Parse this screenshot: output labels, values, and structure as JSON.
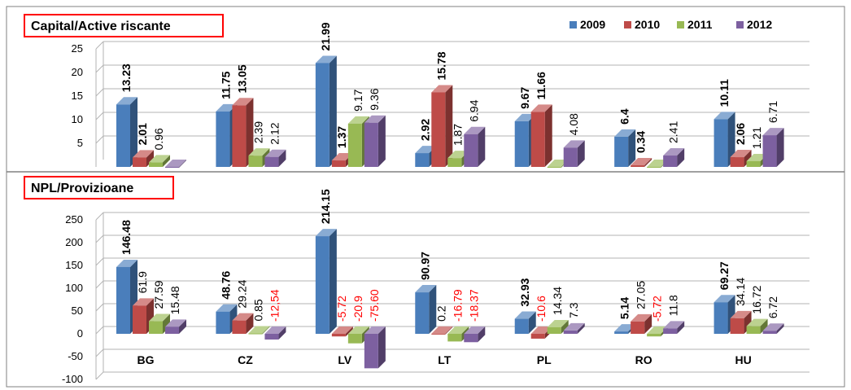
{
  "chart_data": [
    {
      "type": "bar",
      "title": "Capital/Active riscante",
      "categories": [
        "BG",
        "CZ",
        "LV",
        "LT",
        "PL",
        "RO",
        "HU"
      ],
      "ylim": [
        0,
        25
      ],
      "yticks": [
        5,
        10,
        15,
        20,
        25
      ],
      "legend_position": "top-right",
      "series": [
        {
          "name": "2009",
          "values": [
            13.23,
            11.75,
            21.99,
            2.92,
            9.67,
            6.4,
            10.11
          ]
        },
        {
          "name": "2010",
          "values": [
            2.01,
            13.05,
            1.37,
            15.78,
            11.66,
            0.34,
            2.06
          ]
        },
        {
          "name": "2011",
          "values": [
            0.96,
            2.39,
            9.17,
            1.87,
            0,
            0,
            1.21
          ]
        },
        {
          "name": "2012",
          "values": [
            0,
            2.12,
            9.36,
            6.94,
            4.08,
            2.41,
            6.71
          ]
        }
      ],
      "labels": [
        [
          "13.23",
          "2.01",
          "0.96",
          ""
        ],
        [
          "11.75",
          "13.05",
          "2.39",
          "2.12"
        ],
        [
          "21.99",
          "1.37",
          "9.17",
          "9.36"
        ],
        [
          "2.92",
          "15.78",
          "1.87",
          "6.94"
        ],
        [
          "9.67",
          "11.66",
          "",
          "4.08"
        ],
        [
          "6.4",
          "0.34",
          "",
          "2.41"
        ],
        [
          "10.11",
          "2.06",
          "1.21",
          "6.71"
        ]
      ]
    },
    {
      "type": "bar",
      "title": "NPL/Provizioane",
      "categories": [
        "BG",
        "CZ",
        "LV",
        "LT",
        "PL",
        "RO",
        "HU"
      ],
      "ylim": [
        -100,
        250
      ],
      "yticks": [
        -100,
        -50,
        0,
        50,
        100,
        150,
        200,
        250
      ],
      "series": [
        {
          "name": "2009",
          "values": [
            146.48,
            48.76,
            214.15,
            90.97,
            32.93,
            5.14,
            69.27
          ]
        },
        {
          "name": "2010",
          "values": [
            61.9,
            29.24,
            -5.72,
            0.2,
            -10.6,
            27.05,
            34.14
          ]
        },
        {
          "name": "2011",
          "values": [
            27.59,
            0.85,
            -20.9,
            -16.79,
            14.34,
            -5.72,
            16.72
          ]
        },
        {
          "name": "2012",
          "values": [
            15.48,
            -12.54,
            -75.6,
            -18.37,
            7.3,
            11.8,
            6.72
          ]
        }
      ],
      "labels": [
        [
          "146.48",
          "61.9",
          "27.59",
          "15.48"
        ],
        [
          "48.76",
          "29.24",
          "0.85",
          "-12,54"
        ],
        [
          "214.15",
          "-5.72",
          "-20.9",
          "-75.60"
        ],
        [
          "90.97",
          "0.2",
          "-16.79",
          "-18.37"
        ],
        [
          "32.93",
          "-10.6",
          "14.34",
          "7.3"
        ],
        [
          "5.14",
          "27.05",
          "-5.72",
          "11.8"
        ],
        [
          "69.27",
          "34.14",
          "16.72",
          "6.72"
        ]
      ]
    }
  ],
  "colors": {
    "2009": "#4a7ebb",
    "2010": "#be4b48",
    "2011": "#98b954",
    "2012": "#7d60a0",
    "negative_label": "#ff0000",
    "title_box": "#ff0000",
    "grid": "#b3b3b3",
    "frame": "#808080"
  }
}
